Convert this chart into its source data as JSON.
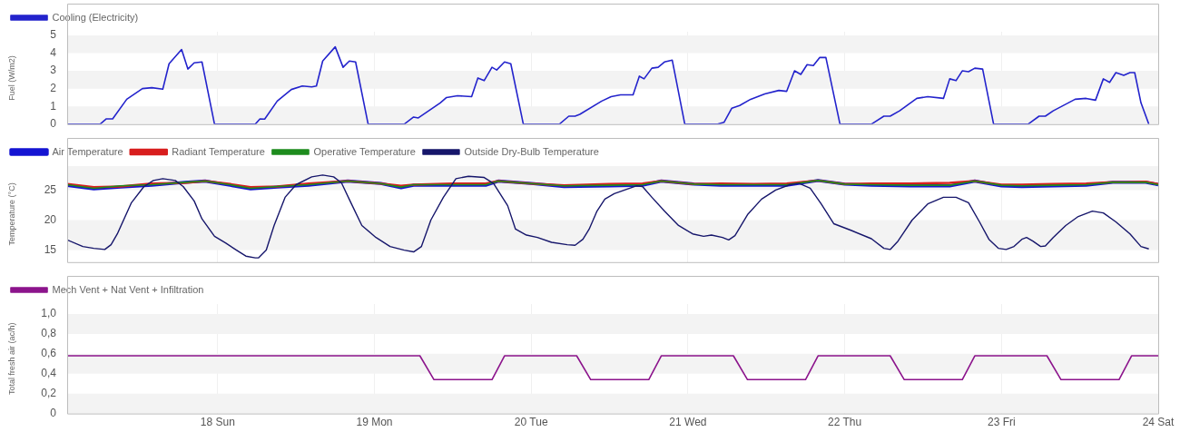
{
  "chart_data": [
    {
      "type": "line",
      "ylabel": "Fuel (W/m2)",
      "xlim": [
        17.04,
        24
      ],
      "xticks": [
        18,
        19,
        20,
        21,
        22,
        23,
        24
      ],
      "ylim": [
        0,
        5.2
      ],
      "yticks": [
        0,
        1,
        2,
        3,
        4,
        5
      ],
      "tick_labels": "y",
      "grid": true,
      "legend": "top left",
      "marker": "none",
      "line_style": "solid",
      "series": [
        {
          "name": "Cooling (Electricity)",
          "color": "#2323cc",
          "x": [
            17.04,
            17.25,
            17.29,
            17.33,
            17.42,
            17.52,
            17.58,
            17.65,
            17.69,
            17.77,
            17.81,
            17.85,
            17.9,
            17.98,
            18.24,
            18.27,
            18.3,
            18.38,
            18.47,
            18.54,
            18.6,
            18.63,
            18.67,
            18.75,
            18.8,
            18.84,
            18.88,
            18.96,
            19.19,
            19.25,
            19.28,
            19.42,
            19.46,
            19.53,
            19.62,
            19.66,
            19.7,
            19.75,
            19.78,
            19.83,
            19.87,
            19.95,
            20.18,
            20.24,
            20.28,
            20.31,
            20.45,
            20.51,
            20.57,
            20.65,
            20.69,
            20.72,
            20.77,
            20.81,
            20.85,
            20.9,
            20.98,
            21.19,
            21.23,
            21.28,
            21.33,
            21.4,
            21.49,
            21.58,
            21.63,
            21.68,
            21.72,
            21.76,
            21.8,
            21.84,
            21.88,
            21.97,
            22.17,
            22.25,
            22.29,
            22.35,
            22.46,
            22.53,
            22.63,
            22.67,
            22.71,
            22.75,
            22.79,
            22.83,
            22.88,
            22.95,
            23.17,
            23.24,
            23.28,
            23.33,
            23.47,
            23.54,
            23.6,
            23.65,
            23.69,
            23.73,
            23.78,
            23.82,
            23.85,
            23.89,
            23.94
          ],
          "values": [
            0,
            0,
            0.3,
            0.3,
            1.4,
            2.0,
            2.05,
            1.97,
            3.4,
            4.2,
            3.1,
            3.45,
            3.5,
            0,
            0,
            0.3,
            0.28,
            1.3,
            1.95,
            2.15,
            2.1,
            2.15,
            3.55,
            4.35,
            3.2,
            3.55,
            3.5,
            0,
            0,
            0.4,
            0.35,
            1.2,
            1.5,
            1.6,
            1.55,
            2.6,
            2.45,
            3.2,
            3.05,
            3.5,
            3.4,
            0,
            0,
            0.45,
            0.45,
            0.55,
            1.3,
            1.55,
            1.65,
            1.65,
            2.7,
            2.55,
            3.15,
            3.2,
            3.5,
            3.6,
            0,
            0,
            0.1,
            0.9,
            1.05,
            1.4,
            1.7,
            1.9,
            1.85,
            3.0,
            2.8,
            3.35,
            3.3,
            3.75,
            3.75,
            0,
            0,
            0.45,
            0.45,
            0.75,
            1.45,
            1.55,
            1.45,
            2.55,
            2.45,
            3.0,
            2.95,
            3.15,
            3.1,
            0,
            0,
            0.45,
            0.45,
            0.75,
            1.4,
            1.45,
            1.35,
            2.55,
            2.35,
            2.9,
            2.75,
            2.9,
            2.9,
            1.2,
            0
          ]
        }
      ]
    },
    {
      "type": "line",
      "ylabel": "Temperature (°C)",
      "xlim": [
        17.04,
        24
      ],
      "xticks": [
        18,
        19,
        20,
        21,
        22,
        23,
        24
      ],
      "ylim": [
        13,
        29
      ],
      "yticks": [
        15,
        20,
        25
      ],
      "tick_labels": "y",
      "grid": true,
      "legend": "top left",
      "marker": "none",
      "line_style": "solid",
      "series": [
        {
          "name": "Air Temperature",
          "color": "#1414d2",
          "x": [
            17.04,
            17.21,
            17.38,
            17.58,
            17.79,
            17.92,
            18.08,
            18.21,
            18.38,
            18.58,
            18.83,
            19.04,
            19.17,
            19.25,
            19.5,
            19.71,
            19.79,
            20.0,
            20.21,
            20.5,
            20.71,
            20.83,
            21.04,
            21.21,
            21.42,
            21.63,
            21.83,
            22.0,
            22.17,
            22.42,
            22.67,
            22.83,
            23.0,
            23.13,
            23.33,
            23.54,
            23.71,
            23.79,
            23.92,
            24.0
          ],
          "values": [
            25.8,
            25.2,
            25.5,
            25.8,
            26.3,
            26.5,
            25.8,
            25.2,
            25.5,
            25.8,
            26.5,
            26.1,
            25.4,
            25.8,
            25.8,
            25.8,
            26.5,
            26.1,
            25.6,
            25.7,
            25.8,
            26.5,
            26.0,
            25.8,
            25.8,
            25.8,
            26.6,
            26.0,
            25.8,
            25.7,
            25.7,
            26.5,
            25.7,
            25.6,
            25.7,
            25.8,
            26.3,
            26.3,
            26.3,
            25.9
          ]
        },
        {
          "name": "Radiant Temperature",
          "color": "#d81e1e",
          "x": [
            17.04,
            17.21,
            17.38,
            17.58,
            17.79,
            17.92,
            18.08,
            18.21,
            18.38,
            18.58,
            18.83,
            19.04,
            19.17,
            19.25,
            19.5,
            19.71,
            19.79,
            20.0,
            20.21,
            20.5,
            20.71,
            20.83,
            21.04,
            21.21,
            21.42,
            21.63,
            21.83,
            22.0,
            22.17,
            22.42,
            22.67,
            22.83,
            23.0,
            23.13,
            23.33,
            23.54,
            23.71,
            23.79,
            23.92,
            24.0
          ],
          "values": [
            26.0,
            25.5,
            25.6,
            26.1,
            26.2,
            26.5,
            26.0,
            25.5,
            25.6,
            26.1,
            26.5,
            26.1,
            25.7,
            25.9,
            26.1,
            26.1,
            26.5,
            26.1,
            25.8,
            26.0,
            26.1,
            26.5,
            26.0,
            26.1,
            26.0,
            26.1,
            26.6,
            26.0,
            26.1,
            26.1,
            26.2,
            26.5,
            25.9,
            25.9,
            26.0,
            26.1,
            26.3,
            26.3,
            26.4,
            26.0
          ]
        },
        {
          "name": "Operative Temperature",
          "color": "#1e8c1e",
          "x": [
            17.04,
            17.21,
            17.38,
            17.58,
            17.79,
            17.92,
            18.08,
            18.21,
            18.38,
            18.58,
            18.83,
            19.04,
            19.17,
            19.25,
            19.5,
            19.71,
            19.79,
            20.0,
            20.21,
            20.5,
            20.71,
            20.83,
            21.04,
            21.21,
            21.42,
            21.63,
            21.83,
            22.0,
            22.17,
            22.42,
            22.67,
            22.83,
            23.0,
            23.13,
            23.33,
            23.54,
            23.71,
            23.79,
            23.92,
            24.0
          ],
          "values": [
            25.9,
            25.3,
            25.7,
            25.9,
            26.3,
            26.5,
            25.9,
            25.3,
            25.6,
            25.9,
            26.5,
            26.1,
            25.5,
            25.9,
            25.9,
            25.9,
            26.5,
            26.1,
            25.7,
            25.8,
            25.9,
            26.5,
            26.0,
            25.9,
            25.9,
            25.9,
            26.6,
            26.0,
            25.9,
            25.8,
            25.8,
            26.5,
            25.8,
            25.7,
            25.8,
            25.9,
            26.3,
            26.3,
            26.3,
            25.9
          ]
        },
        {
          "name": "Outside Dry-Bulb Temperature",
          "color": "#16166b",
          "x": [
            17.04,
            17.14,
            17.21,
            17.28,
            17.32,
            17.36,
            17.45,
            17.53,
            17.59,
            17.65,
            17.73,
            17.78,
            17.85,
            17.9,
            17.98,
            18.05,
            18.12,
            18.18,
            18.24,
            18.26,
            18.31,
            18.36,
            18.43,
            18.5,
            18.6,
            18.67,
            18.74,
            18.79,
            18.85,
            18.92,
            19.01,
            19.1,
            19.19,
            19.25,
            19.3,
            19.36,
            19.44,
            19.52,
            19.6,
            19.7,
            19.76,
            19.85,
            19.9,
            19.97,
            20.04,
            20.13,
            20.23,
            20.28,
            20.33,
            20.37,
            20.42,
            20.47,
            20.53,
            20.67,
            20.71,
            20.77,
            20.85,
            20.94,
            21.03,
            21.1,
            21.15,
            21.22,
            21.26,
            21.3,
            21.38,
            21.47,
            21.56,
            21.65,
            21.71,
            21.78,
            21.85,
            21.93,
            22.04,
            22.17,
            22.25,
            22.29,
            22.34,
            22.43,
            22.53,
            22.63,
            22.71,
            22.79,
            22.86,
            22.92,
            22.98,
            23.03,
            23.08,
            23.13,
            23.16,
            23.2,
            23.25,
            23.28,
            23.33,
            23.41,
            23.49,
            23.58,
            23.65,
            23.73,
            23.82,
            23.89,
            23.94
          ],
          "values": [
            16.7,
            15.6,
            15.3,
            15.1,
            15.9,
            17.7,
            22.9,
            25.6,
            26.6,
            26.9,
            26.6,
            25.6,
            23.2,
            20.2,
            17.3,
            16.2,
            15.0,
            14.0,
            13.7,
            13.7,
            15.0,
            19.1,
            23.8,
            25.9,
            27.2,
            27.5,
            27.2,
            26.2,
            22.9,
            19.1,
            17.1,
            15.6,
            15.0,
            14.7,
            15.6,
            20.0,
            23.8,
            26.9,
            27.3,
            27.1,
            26.1,
            22.4,
            18.5,
            17.5,
            17.1,
            16.3,
            15.9,
            15.8,
            16.8,
            18.5,
            21.5,
            23.5,
            24.4,
            25.7,
            25.6,
            23.8,
            21.5,
            19.1,
            17.7,
            17.3,
            17.5,
            17.1,
            16.7,
            17.4,
            20.9,
            23.5,
            25.0,
            25.9,
            26.1,
            25.3,
            22.7,
            19.4,
            18.3,
            16.9,
            15.3,
            15.1,
            16.5,
            20.0,
            22.7,
            23.8,
            23.8,
            22.9,
            19.7,
            16.8,
            15.3,
            15.1,
            15.6,
            16.8,
            17.1,
            16.5,
            15.6,
            15.7,
            17.1,
            19.1,
            20.6,
            21.5,
            21.2,
            19.7,
            17.7,
            15.6,
            15.2
          ]
        }
      ]
    },
    {
      "type": "line",
      "ylabel": "Total fresh air (ac/h)",
      "xlim": [
        17.04,
        24
      ],
      "xticks": [
        {
          "value": 18,
          "label": "18 Sun"
        },
        {
          "value": 19,
          "label": "19 Mon"
        },
        {
          "value": 20,
          "label": "20 Tue"
        },
        {
          "value": 21,
          "label": "21 Wed"
        },
        {
          "value": 22,
          "label": "22 Thu"
        },
        {
          "value": 23,
          "label": "23 Fri"
        },
        {
          "value": 24,
          "label": "24 Sat"
        }
      ],
      "ylim": [
        0,
        1.1
      ],
      "yticks": [
        0,
        {
          "value": 0.2,
          "label": "0,2"
        },
        {
          "value": 0.4,
          "label": "0,4"
        },
        {
          "value": 0.6,
          "label": "0,6"
        },
        {
          "value": 0.8,
          "label": "0,8"
        },
        {
          "value": 1.0,
          "label": "1,0"
        }
      ],
      "grid": true,
      "legend": "top left",
      "marker": "none",
      "line_style": "solid",
      "series": [
        {
          "name": "Mech Vent + Nat Vent + Infiltration",
          "color": "#8c148c",
          "x": [
            17.04,
            19.29,
            19.38,
            19.75,
            19.83,
            20.29,
            20.38,
            20.75,
            20.83,
            21.29,
            21.38,
            21.75,
            21.83,
            22.29,
            22.38,
            22.75,
            22.83,
            23.29,
            23.38,
            23.75,
            23.83,
            24.0
          ],
          "values": [
            0.58,
            0.58,
            0.34,
            0.34,
            0.58,
            0.58,
            0.34,
            0.34,
            0.58,
            0.58,
            0.34,
            0.34,
            0.58,
            0.58,
            0.34,
            0.34,
            0.58,
            0.58,
            0.34,
            0.34,
            0.58,
            0.58
          ]
        }
      ]
    }
  ]
}
